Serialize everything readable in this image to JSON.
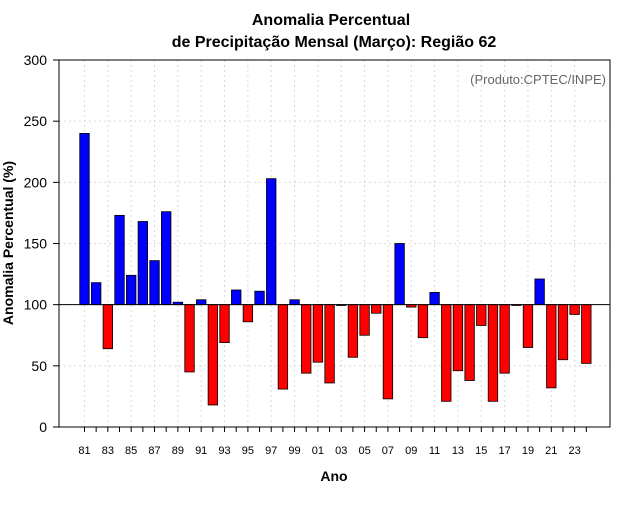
{
  "chart_data": {
    "type": "bar",
    "title": [
      "Anomalia Percentual",
      "de Precipitação Mensal (Março): Região 62"
    ],
    "annotation": "(Produto:CPTEC/INPE)",
    "xlabel": "Ano",
    "ylabel": "Anomalia Percentual (%)",
    "ylim": [
      0,
      300
    ],
    "yticks": [
      "0",
      "50",
      "100",
      "150",
      "200",
      "250",
      "300"
    ],
    "baseline": 100,
    "grid": true,
    "colors": {
      "above": "#0000ff",
      "below": "#ff0000",
      "outline": "#000000",
      "grid": "#d9d9d9"
    },
    "categories": [
      "81",
      "82",
      "83",
      "84",
      "85",
      "86",
      "87",
      "88",
      "89",
      "90",
      "91",
      "92",
      "93",
      "94",
      "95",
      "96",
      "97",
      "98",
      "99",
      "00",
      "01",
      "02",
      "03",
      "04",
      "05",
      "06",
      "07",
      "08",
      "09",
      "10",
      "11",
      "12",
      "13",
      "14",
      "15",
      "16",
      "17",
      "18",
      "19",
      "20",
      "21",
      "22",
      "23",
      "24"
    ],
    "xtick_labels": [
      "81",
      "83",
      "85",
      "87",
      "89",
      "91",
      "93",
      "95",
      "97",
      "99",
      "01",
      "03",
      "05",
      "07",
      "09",
      "11",
      "13",
      "15",
      "17",
      "19",
      "21",
      "23"
    ],
    "values": [
      240,
      118,
      64,
      173,
      124,
      168,
      136,
      176,
      102,
      45,
      104,
      18,
      69,
      112,
      86,
      111,
      203,
      31,
      104,
      44,
      53,
      36,
      100,
      57,
      75,
      93,
      23,
      150,
      98,
      73,
      110,
      21,
      46,
      38,
      83,
      21,
      44,
      100,
      65,
      121,
      32,
      55,
      92,
      52
    ]
  }
}
